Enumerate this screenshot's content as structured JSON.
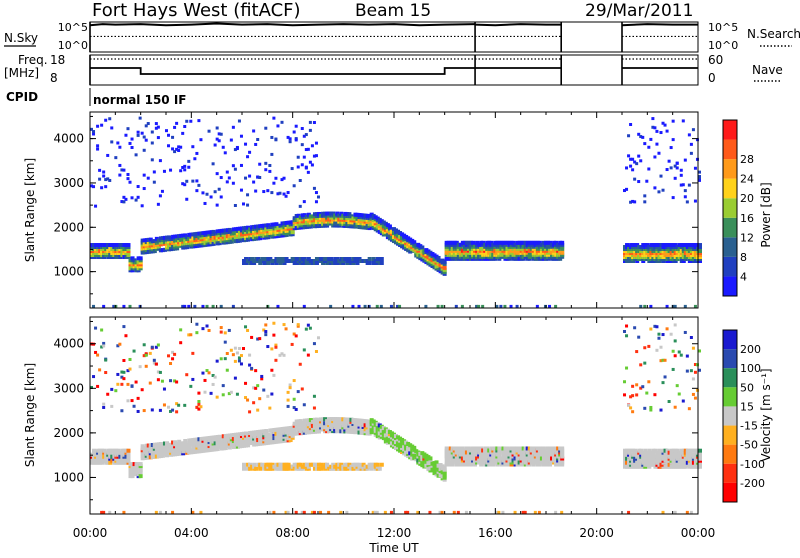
{
  "header": {
    "station": "Fort Hays West (fitACF)",
    "beam": "Beam 15",
    "date": "29/Mar/2011"
  },
  "noise_panel": {
    "left_label": "N.Sky",
    "left_ticks": [
      "10^5",
      "10^0"
    ],
    "right_ticks": [
      "10^5",
      "10^0"
    ],
    "right_label": "N.Search",
    "sky_series": [
      [
        0,
        4.6
      ],
      [
        0.5,
        4.8
      ],
      [
        1,
        4.7
      ],
      [
        2,
        4.8
      ],
      [
        3,
        4.6
      ],
      [
        4,
        4.7
      ],
      [
        5,
        4.9
      ],
      [
        6,
        4.7
      ],
      [
        7,
        4.8
      ],
      [
        8,
        4.6
      ],
      [
        9,
        4.7
      ],
      [
        10,
        4.8
      ],
      [
        11,
        4.7
      ],
      [
        12,
        4.8
      ],
      [
        13,
        4.6
      ],
      [
        14,
        4.7
      ],
      [
        15.2,
        4.8
      ]
    ],
    "sky_series2": [
      [
        15.2,
        4.7
      ],
      [
        16,
        4.6
      ],
      [
        17,
        4.8
      ],
      [
        18,
        4.7
      ],
      [
        18.6,
        4.7
      ]
    ],
    "sky_series3": [
      [
        21,
        4.6
      ],
      [
        22,
        4.8
      ],
      [
        23,
        4.7
      ],
      [
        24,
        4.7
      ]
    ],
    "search_level": 2.6,
    "data_gaps": [
      [
        18.6,
        21.0
      ]
    ]
  },
  "freq_panel": {
    "left_label": "Freq.",
    "left_unit": "[MHz]",
    "left_ticks": [
      "18",
      "8"
    ],
    "right_ticks": [
      "60",
      "0"
    ],
    "right_label": "Nave",
    "freq_steps": [
      [
        0,
        14
      ],
      [
        2,
        14
      ],
      [
        2,
        11
      ],
      [
        14,
        11
      ],
      [
        14,
        14
      ],
      [
        18.6,
        14
      ]
    ],
    "freq_steps2": [
      [
        21,
        14
      ],
      [
        24,
        14
      ]
    ],
    "nave_level": 57
  },
  "cpid": {
    "label": "CPID",
    "program": "normal 150 IF"
  },
  "chart_data": [
    {
      "type": "heatmap",
      "title": "",
      "ylabel": "Slant Range [km]",
      "xlabel": "",
      "ylim": [
        180,
        4600
      ],
      "xlim": [
        0,
        24
      ],
      "yticks": [
        1000,
        2000,
        3000,
        4000
      ],
      "colorbar": {
        "label": "Power [dB]",
        "ticks": [
          "4",
          "8",
          "12",
          "16",
          "20",
          "24",
          "28"
        ],
        "colors": [
          "#1a1aff",
          "#2040c0",
          "#2a6090",
          "#3a8f5a",
          "#9acd32",
          "#ffd21a",
          "#ff9a1a",
          "#ff5a1a",
          "#ff1a1a"
        ]
      }
    },
    {
      "type": "heatmap",
      "title": "",
      "ylabel": "Slant Range [km]",
      "xlabel": "Time UT",
      "ylim": [
        180,
        4600
      ],
      "xlim": [
        0,
        24
      ],
      "yticks": [
        1000,
        2000,
        3000,
        4000
      ],
      "xticks": [
        "00:00",
        "04:00",
        "08:00",
        "12:00",
        "16:00",
        "20:00",
        "00:00"
      ],
      "colorbar": {
        "label": "Velocity [m s⁻¹]",
        "ticks": [
          "200",
          "100",
          "50",
          "15",
          "-15",
          "-50",
          "-100",
          "-200"
        ],
        "colors": [
          "#1a1ad0",
          "#2a4ab0",
          "#2a8f5a",
          "#66cc33",
          "#c8c8c8",
          "#ffb020",
          "#ff7a10",
          "#ff3010",
          "#ff0000"
        ]
      }
    }
  ],
  "gaps": [
    [
      18.6,
      21.0
    ]
  ]
}
